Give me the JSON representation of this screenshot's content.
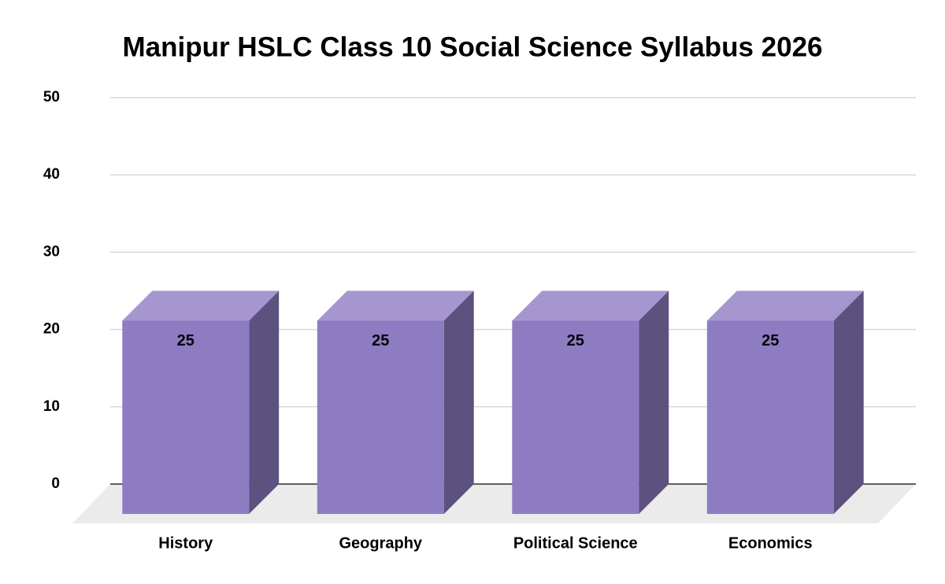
{
  "chart_data": {
    "type": "bar3d",
    "title": "Manipur HSLC Class 10 Social Science Syllabus 2026",
    "categories": [
      "History",
      "Geography",
      "Political Science",
      "Economics"
    ],
    "values": [
      25,
      25,
      25,
      25
    ],
    "color": "#8e7cc3",
    "ylim": [
      0,
      50
    ],
    "yticks": [
      0,
      10,
      20,
      30,
      40,
      50
    ],
    "grid": true
  }
}
